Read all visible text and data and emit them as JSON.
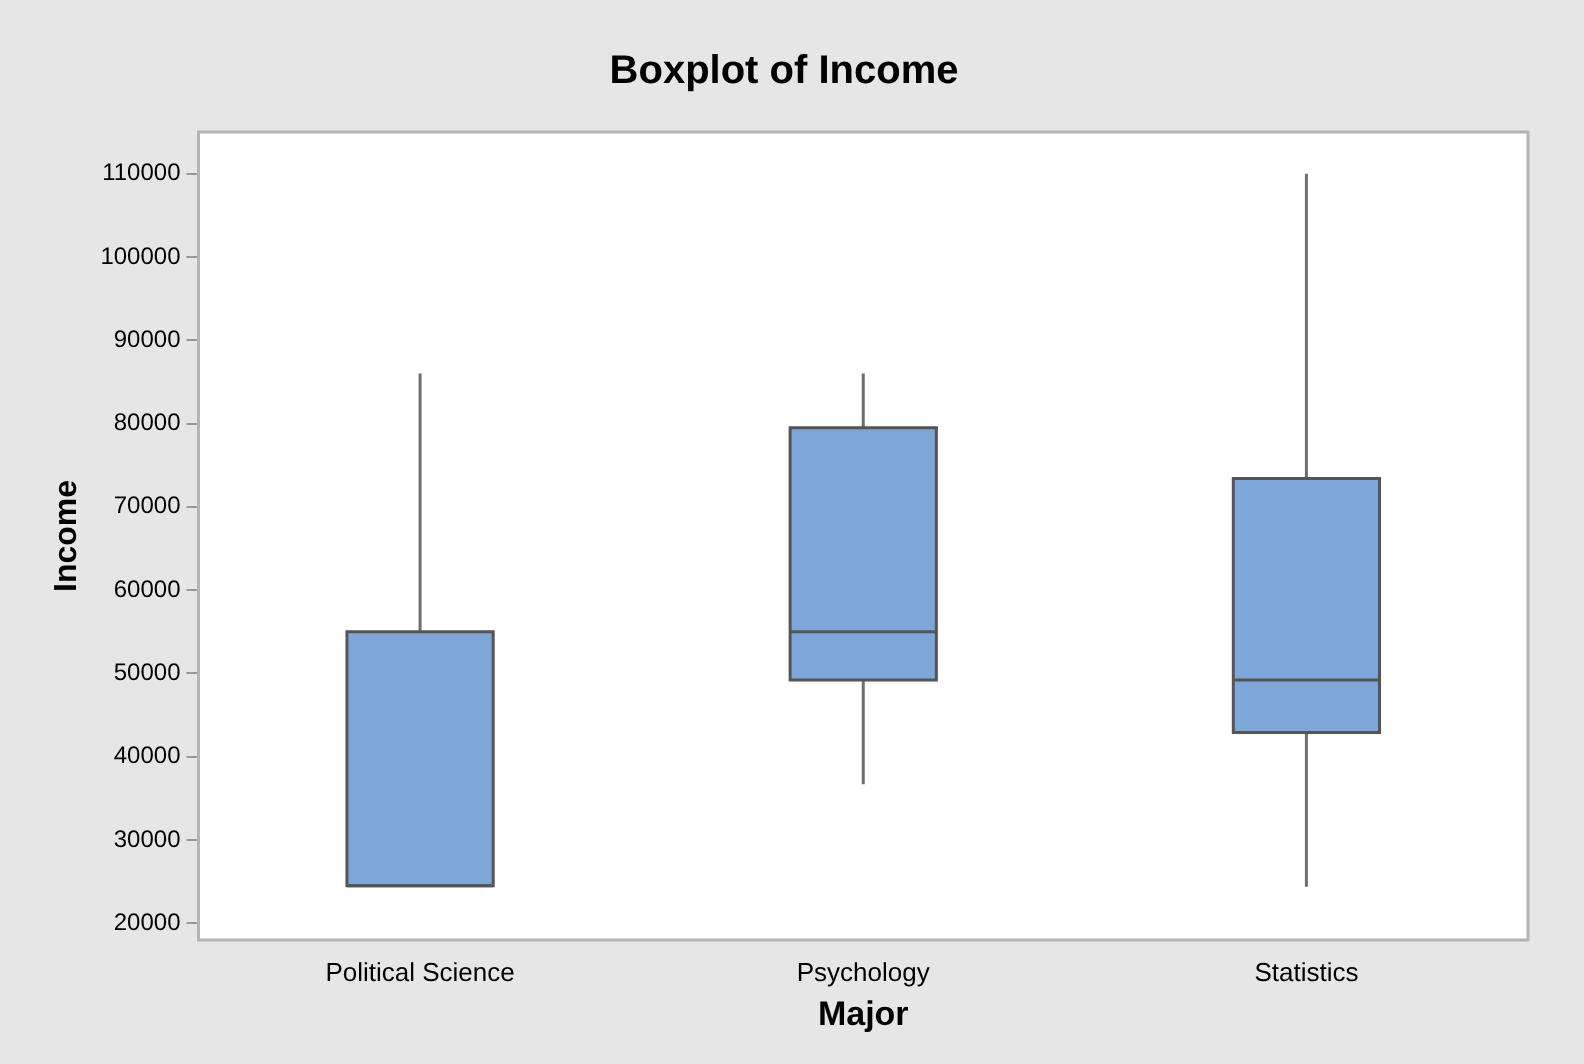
{
  "chart_data": {
    "type": "box",
    "title": "Boxplot of Income",
    "xlabel": "Major",
    "ylabel": "Income",
    "categories": [
      "Political Science",
      "Psychology",
      "Statistics"
    ],
    "color": "#7ea6d8",
    "boxes": [
      {
        "low": 24500,
        "q1": 24500,
        "median": 24500,
        "q3": 55000,
        "high": 86000
      },
      {
        "low": 36700,
        "q1": 49200,
        "median": 55000,
        "q3": 79500,
        "high": 86000
      },
      {
        "low": 24400,
        "q1": 42900,
        "median": 49200,
        "q3": 73400,
        "high": 110000
      }
    ],
    "ylim": [
      18000,
      115000
    ],
    "yticks": [
      20000,
      30000,
      40000,
      50000,
      60000,
      70000,
      80000,
      90000,
      100000,
      110000
    ],
    "grid": false,
    "legend": false
  }
}
